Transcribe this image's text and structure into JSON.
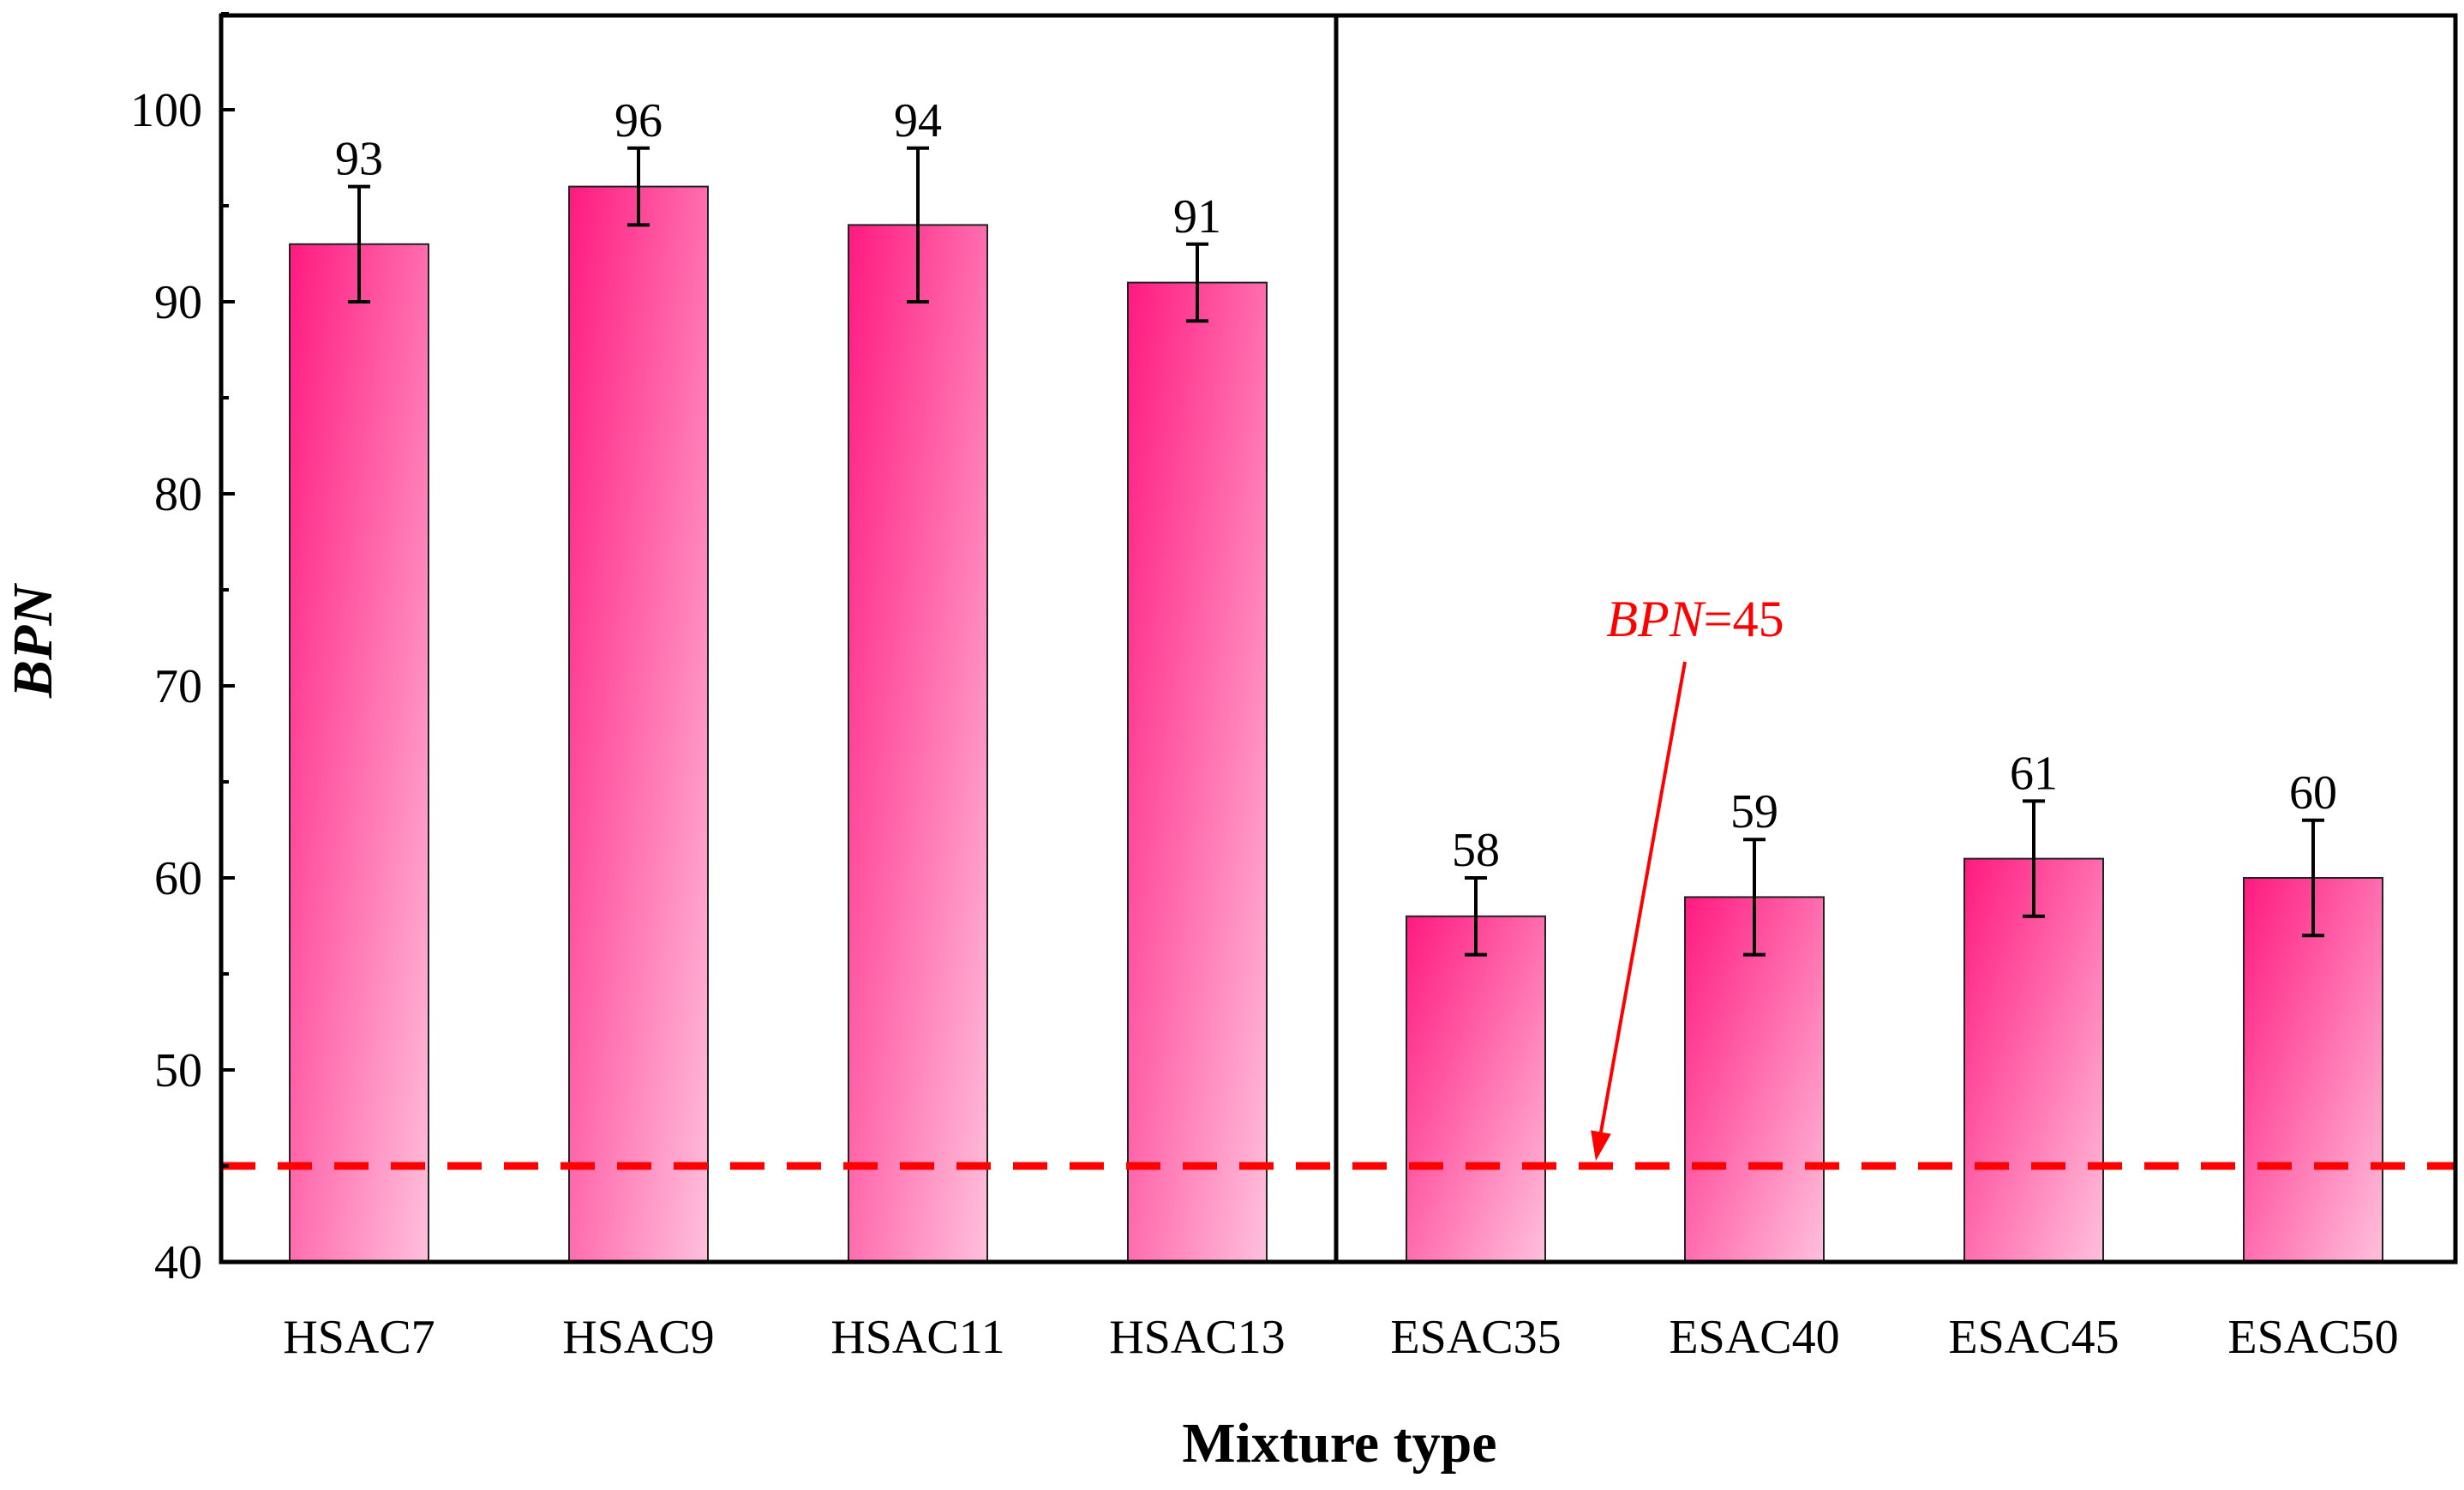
{
  "chart_data": {
    "type": "bar",
    "title": "",
    "xlabel": "Mixture type",
    "ylabel": "BPN",
    "ylim": [
      40,
      105
    ],
    "yticks": [
      40,
      50,
      60,
      70,
      80,
      90,
      100
    ],
    "y_minor_step": 5,
    "grid": false,
    "categories": [
      "HSAC7",
      "HSAC9",
      "HSAC11",
      "HSAC13",
      "ESAC35",
      "ESAC40",
      "ESAC45",
      "ESAC50"
    ],
    "values": [
      93,
      96,
      94,
      91,
      58,
      59,
      61,
      60
    ],
    "errors": [
      3,
      2,
      4,
      2,
      2,
      3,
      3,
      3
    ],
    "data_labels": [
      "93",
      "96",
      "94",
      "91",
      "58",
      "59",
      "61",
      "60"
    ],
    "group_separator_after_index": 3,
    "reference_line": {
      "value": 45,
      "style": "dashed",
      "color": "#ff0000",
      "label_italic": "BPN",
      "label_rest": "=45"
    },
    "colors": {
      "bar_dark": "#ff1a80",
      "bar_light": "#ffc0dc",
      "bar_edge": "#222222",
      "axis": "#000000",
      "reference": "#ff0000"
    }
  }
}
